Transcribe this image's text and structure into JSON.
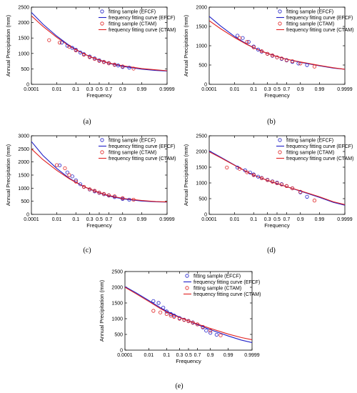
{
  "colors": {
    "efcf": "#1f1fc8",
    "ctam": "#e02020"
  },
  "chart_data": [
    {
      "type": "scatter",
      "panel_label": "(a)",
      "xlabel": "Frequency",
      "ylabel": "Annual Precipitation (mm)",
      "x_scale": "normal-probability",
      "x_ticks": [
        0.0001,
        0.01,
        0.1,
        0.3,
        0.5,
        0.7,
        0.9,
        0.99,
        0.9999
      ],
      "x_tick_labels": [
        "0.0001",
        "0.01",
        "0.1",
        "0.3",
        "0.5",
        "0.7",
        "0.9",
        "0.99",
        "0.9999"
      ],
      "ylim": [
        0,
        2500
      ],
      "y_ticks": [
        0,
        500,
        1000,
        1500,
        2000,
        2500
      ],
      "legend_position": "top-right",
      "grid": false,
      "series": [
        {
          "name": "fitting sample (EFCF)",
          "kind": "marker",
          "color": "efcf",
          "x": [
            0.02,
            0.04,
            0.07,
            0.1,
            0.15,
            0.2,
            0.3,
            0.4,
            0.5,
            0.6,
            0.7,
            0.8,
            0.85,
            0.9,
            0.95
          ],
          "y": [
            1350,
            1250,
            1180,
            1120,
            1030,
            980,
            900,
            840,
            780,
            730,
            690,
            640,
            610,
            560,
            540
          ]
        },
        {
          "name": "frequency fitting curve (EFCF)",
          "kind": "line",
          "color": "efcf",
          "x": [
            0.0001,
            0.001,
            0.01,
            0.05,
            0.1,
            0.2,
            0.3,
            0.5,
            0.7,
            0.9,
            0.99,
            0.999,
            0.9999
          ],
          "y": [
            2330,
            1950,
            1560,
            1260,
            1130,
            990,
            900,
            780,
            680,
            580,
            490,
            450,
            430
          ]
        },
        {
          "name": "fitting sample (CTAM)",
          "kind": "marker",
          "color": "ctam",
          "x": [
            0.003,
            0.015,
            0.05,
            0.1,
            0.2,
            0.3,
            0.4,
            0.5,
            0.6,
            0.7,
            0.8,
            0.9,
            0.97
          ],
          "y": [
            1430,
            1350,
            1220,
            1100,
            960,
            880,
            820,
            760,
            720,
            680,
            630,
            580,
            510
          ]
        },
        {
          "name": "frequency fitting curve (CTAM)",
          "kind": "line",
          "color": "ctam",
          "x": [
            0.0001,
            0.001,
            0.01,
            0.05,
            0.1,
            0.2,
            0.3,
            0.5,
            0.7,
            0.9,
            0.99,
            0.999,
            0.9999
          ],
          "y": [
            2220,
            1880,
            1520,
            1240,
            1120,
            990,
            900,
            790,
            690,
            600,
            510,
            470,
            440
          ]
        }
      ]
    },
    {
      "type": "scatter",
      "panel_label": "(b)",
      "xlabel": "Frequency",
      "ylabel": "Annual Precipitation (mm)",
      "x_scale": "normal-probability",
      "x_ticks": [
        0.0001,
        0.01,
        0.1,
        0.3,
        0.5,
        0.7,
        0.9,
        0.99,
        0.9999
      ],
      "x_tick_labels": [
        "0.0001",
        "0.01",
        "0.1",
        "0.3",
        "0.5",
        "0.7",
        "0.9",
        "0.99",
        "0.9999"
      ],
      "ylim": [
        0,
        2000
      ],
      "y_ticks": [
        0,
        500,
        1000,
        1500,
        2000
      ],
      "legend_position": "top-right",
      "grid": false,
      "series": [
        {
          "name": "fitting sample (EFCF)",
          "kind": "marker",
          "color": "efcf",
          "x": [
            0.015,
            0.03,
            0.06,
            0.1,
            0.15,
            0.2,
            0.3,
            0.4,
            0.5,
            0.6,
            0.7,
            0.8,
            0.88,
            0.95
          ],
          "y": [
            1260,
            1200,
            1100,
            980,
            900,
            850,
            790,
            740,
            700,
            660,
            620,
            580,
            540,
            500
          ]
        },
        {
          "name": "frequency fitting curve (EFCF)",
          "kind": "line",
          "color": "efcf",
          "x": [
            0.0001,
            0.001,
            0.01,
            0.05,
            0.1,
            0.2,
            0.3,
            0.5,
            0.7,
            0.9,
            0.99,
            0.999,
            0.9999
          ],
          "y": [
            1760,
            1510,
            1240,
            1040,
            950,
            860,
            800,
            720,
            650,
            570,
            480,
            420,
            390
          ]
        },
        {
          "name": "fitting sample (CTAM)",
          "kind": "marker",
          "color": "ctam",
          "x": [
            0.02,
            0.05,
            0.1,
            0.2,
            0.3,
            0.4,
            0.5,
            0.6,
            0.7,
            0.8,
            0.9,
            0.98
          ],
          "y": [
            1200,
            1100,
            960,
            860,
            790,
            750,
            700,
            670,
            630,
            600,
            540,
            460
          ]
        },
        {
          "name": "frequency fitting curve (CTAM)",
          "kind": "line",
          "color": "ctam",
          "x": [
            0.0001,
            0.001,
            0.01,
            0.05,
            0.1,
            0.2,
            0.3,
            0.5,
            0.7,
            0.9,
            0.99,
            0.999,
            0.9999
          ],
          "y": [
            1650,
            1440,
            1210,
            1030,
            950,
            860,
            800,
            720,
            650,
            580,
            490,
            430,
            390
          ]
        }
      ]
    },
    {
      "type": "scatter",
      "panel_label": "(c)",
      "xlabel": "Frequency",
      "ylabel": "Annual Precipitation (mm)",
      "x_scale": "normal-probability",
      "x_ticks": [
        0.0001,
        0.01,
        0.1,
        0.3,
        0.5,
        0.7,
        0.9,
        0.99,
        0.9999
      ],
      "x_tick_labels": [
        "0.0001",
        "0.01",
        "0.1",
        "0.3",
        "0.5",
        "0.7",
        "0.9",
        "0.99",
        "0.9999"
      ],
      "ylim": [
        0,
        3000
      ],
      "y_ticks": [
        0,
        500,
        1000,
        1500,
        2000,
        2500,
        3000
      ],
      "legend_position": "top-right",
      "grid": false,
      "series": [
        {
          "name": "fitting sample (EFCF)",
          "kind": "marker",
          "color": "efcf",
          "x": [
            0.015,
            0.04,
            0.07,
            0.1,
            0.15,
            0.2,
            0.3,
            0.4,
            0.5,
            0.6,
            0.7,
            0.8,
            0.9,
            0.95
          ],
          "y": [
            1870,
            1600,
            1450,
            1300,
            1150,
            1050,
            950,
            880,
            820,
            770,
            720,
            660,
            590,
            560
          ]
        },
        {
          "name": "frequency fitting curve (EFCF)",
          "kind": "line",
          "color": "efcf",
          "x": [
            0.0001,
            0.001,
            0.01,
            0.05,
            0.1,
            0.2,
            0.3,
            0.5,
            0.7,
            0.9,
            0.99,
            0.999,
            0.9999
          ],
          "y": [
            2780,
            2250,
            1750,
            1380,
            1230,
            1060,
            960,
            820,
            700,
            590,
            510,
            480,
            470
          ]
        },
        {
          "name": "fitting sample (CTAM)",
          "kind": "marker",
          "color": "ctam",
          "x": [
            0.01,
            0.03,
            0.05,
            0.1,
            0.2,
            0.3,
            0.4,
            0.5,
            0.6,
            0.7,
            0.8,
            0.9,
            0.97
          ],
          "y": [
            1880,
            1760,
            1500,
            1250,
            1050,
            960,
            900,
            830,
            780,
            730,
            690,
            620,
            560
          ]
        },
        {
          "name": "frequency fitting curve (CTAM)",
          "kind": "line",
          "color": "ctam",
          "x": [
            0.0001,
            0.001,
            0.01,
            0.05,
            0.1,
            0.2,
            0.3,
            0.5,
            0.7,
            0.9,
            0.99,
            0.999,
            0.9999
          ],
          "y": [
            2500,
            2090,
            1680,
            1360,
            1220,
            1060,
            970,
            830,
            720,
            610,
            530,
            490,
            475
          ]
        }
      ]
    },
    {
      "type": "scatter",
      "panel_label": "(d)",
      "xlabel": "Frequency",
      "ylabel": "Annual Precipitation (mm)",
      "x_scale": "normal-probability",
      "x_ticks": [
        0.0001,
        0.01,
        0.1,
        0.3,
        0.5,
        0.7,
        0.9,
        0.99,
        0.9999
      ],
      "x_tick_labels": [
        "0.0001",
        "0.01",
        "0.1",
        "0.3",
        "0.5",
        "0.7",
        "0.9",
        "0.99",
        "0.9999"
      ],
      "ylim": [
        0,
        2500
      ],
      "y_ticks": [
        0,
        500,
        1000,
        1500,
        2000,
        2500
      ],
      "legend_position": "top-right",
      "grid": false,
      "series": [
        {
          "name": "fitting sample (EFCF)",
          "kind": "marker",
          "color": "efcf",
          "x": [
            0.015,
            0.04,
            0.07,
            0.1,
            0.15,
            0.2,
            0.3,
            0.4,
            0.5,
            0.6,
            0.7,
            0.8,
            0.9,
            0.95
          ],
          "y": [
            1490,
            1400,
            1330,
            1270,
            1200,
            1160,
            1100,
            1050,
            1010,
            960,
            900,
            830,
            700,
            560
          ]
        },
        {
          "name": "frequency fitting curve (EFCF)",
          "kind": "line",
          "color": "efcf",
          "x": [
            0.0001,
            0.001,
            0.01,
            0.05,
            0.1,
            0.2,
            0.3,
            0.5,
            0.7,
            0.9,
            0.99,
            0.999,
            0.9999
          ],
          "y": [
            2020,
            1820,
            1570,
            1350,
            1250,
            1150,
            1080,
            980,
            880,
            740,
            540,
            380,
            290
          ]
        },
        {
          "name": "fitting sample (CTAM)",
          "kind": "marker",
          "color": "ctam",
          "x": [
            0.003,
            0.02,
            0.05,
            0.1,
            0.2,
            0.3,
            0.4,
            0.5,
            0.6,
            0.7,
            0.8,
            0.9,
            0.98
          ],
          "y": [
            1490,
            1450,
            1340,
            1250,
            1150,
            1090,
            1040,
            990,
            950,
            900,
            830,
            720,
            440
          ]
        },
        {
          "name": "frequency fitting curve (CTAM)",
          "kind": "line",
          "color": "ctam",
          "x": [
            0.0001,
            0.001,
            0.01,
            0.05,
            0.1,
            0.2,
            0.3,
            0.5,
            0.7,
            0.9,
            0.99,
            0.999,
            0.9999
          ],
          "y": [
            1990,
            1800,
            1560,
            1350,
            1250,
            1150,
            1080,
            980,
            880,
            750,
            560,
            400,
            310
          ]
        }
      ]
    },
    {
      "type": "scatter",
      "panel_label": "(e)",
      "xlabel": "Frequency",
      "ylabel": "Annual Precipitation (mm)",
      "x_scale": "normal-probability",
      "x_ticks": [
        0.0001,
        0.01,
        0.1,
        0.3,
        0.5,
        0.7,
        0.9,
        0.99,
        0.9999
      ],
      "x_tick_labels": [
        "0.0001",
        "0.01",
        "0.1",
        "0.3",
        "0.5",
        "0.7",
        "0.9",
        "0.99",
        "0.9999"
      ],
      "ylim": [
        0,
        2500
      ],
      "y_ticks": [
        0,
        500,
        1000,
        1500,
        2000,
        2500
      ],
      "legend_position": "top-right",
      "grid": false,
      "series": [
        {
          "name": "fitting sample (EFCF)",
          "kind": "marker",
          "color": "efcf",
          "x": [
            0.02,
            0.04,
            0.07,
            0.1,
            0.15,
            0.2,
            0.3,
            0.4,
            0.5,
            0.6,
            0.7,
            0.8,
            0.85,
            0.9,
            0.95
          ],
          "y": [
            1560,
            1500,
            1350,
            1230,
            1150,
            1100,
            1020,
            970,
            930,
            880,
            820,
            720,
            620,
            550,
            490
          ]
        },
        {
          "name": "frequency fitting curve (EFCF)",
          "kind": "line",
          "color": "efcf",
          "x": [
            0.0001,
            0.001,
            0.01,
            0.05,
            0.1,
            0.2,
            0.3,
            0.5,
            0.7,
            0.9,
            0.99,
            0.999,
            0.9999
          ],
          "y": [
            2020,
            1830,
            1580,
            1350,
            1240,
            1130,
            1050,
            930,
            810,
            650,
            450,
            320,
            240
          ]
        },
        {
          "name": "fitting sample (CTAM)",
          "kind": "marker",
          "color": "ctam",
          "x": [
            0.02,
            0.05,
            0.1,
            0.15,
            0.2,
            0.3,
            0.4,
            0.5,
            0.6,
            0.7,
            0.8,
            0.9,
            0.97
          ],
          "y": [
            1250,
            1200,
            1150,
            1100,
            1060,
            1000,
            960,
            920,
            870,
            820,
            740,
            620,
            470
          ]
        },
        {
          "name": "frequency fitting curve (CTAM)",
          "kind": "line",
          "color": "ctam",
          "x": [
            0.0001,
            0.001,
            0.01,
            0.05,
            0.1,
            0.2,
            0.3,
            0.5,
            0.7,
            0.9,
            0.99,
            0.999,
            0.9999
          ],
          "y": [
            2000,
            1800,
            1550,
            1320,
            1220,
            1110,
            1040,
            930,
            830,
            690,
            510,
            400,
            330
          ]
        }
      ]
    }
  ]
}
